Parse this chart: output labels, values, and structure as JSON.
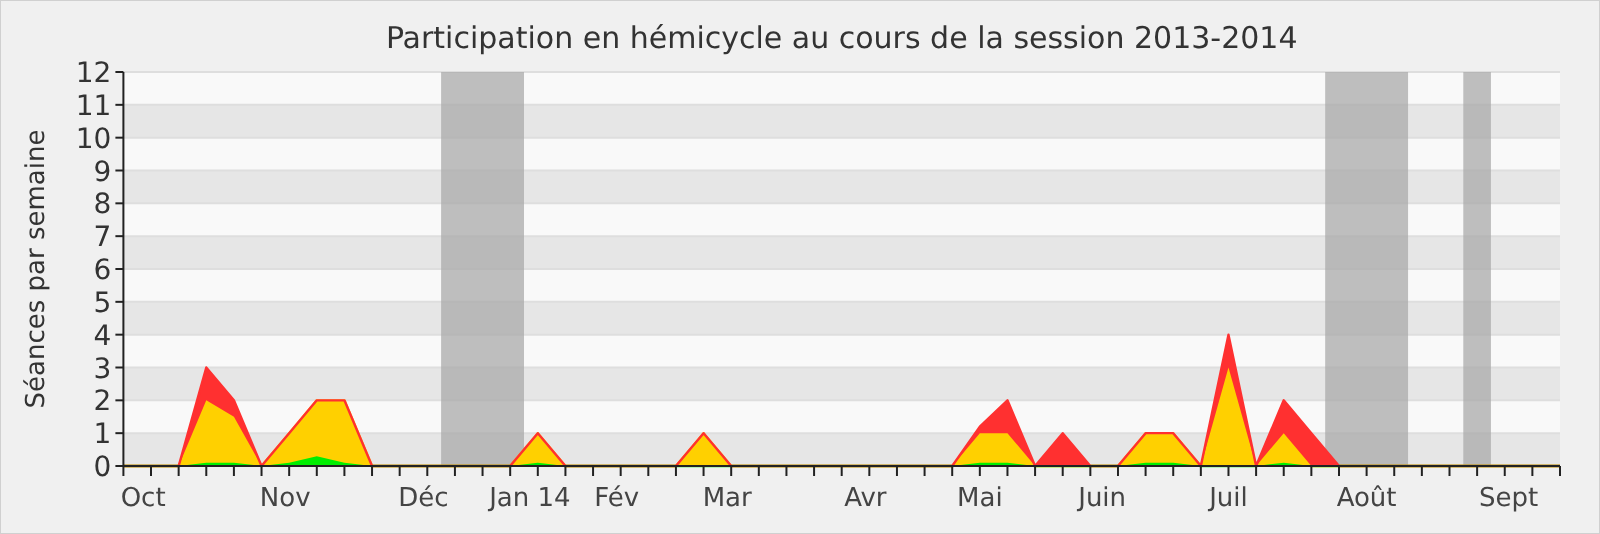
{
  "chart_data": {
    "type": "area",
    "stacked": true,
    "title": "Participation en hémicycle au cours de la session 2013-2014",
    "ylabel": "Séances par semaine",
    "x": [
      "2013-09-29",
      "2013-10-06",
      "2013-10-13",
      "2013-10-20",
      "2013-10-27",
      "2013-11-03",
      "2013-11-10",
      "2013-11-17",
      "2013-11-24",
      "2013-12-01",
      "2013-12-08",
      "2013-12-15",
      "2013-12-22",
      "2013-12-29",
      "2014-01-05",
      "2014-01-12",
      "2014-01-19",
      "2014-01-26",
      "2014-02-02",
      "2014-02-09",
      "2014-02-16",
      "2014-02-23",
      "2014-03-02",
      "2014-03-09",
      "2014-03-16",
      "2014-03-23",
      "2014-03-30",
      "2014-04-06",
      "2014-04-13",
      "2014-04-20",
      "2014-04-27",
      "2014-05-04",
      "2014-05-11",
      "2014-05-18",
      "2014-05-25",
      "2014-06-01",
      "2014-06-08",
      "2014-06-15",
      "2014-06-22",
      "2014-06-29",
      "2014-07-06",
      "2014-07-13",
      "2014-07-20",
      "2014-07-27",
      "2014-08-03",
      "2014-08-10",
      "2014-08-17",
      "2014-08-24",
      "2014-08-31",
      "2014-09-07",
      "2014-09-14",
      "2014-09-21",
      "2014-09-28"
    ],
    "xlim": [
      "2013-09-29",
      "2014-09-28"
    ],
    "xticks": [
      {
        "value": "2013-10-04",
        "label": "Oct"
      },
      {
        "value": "2013-11-09",
        "label": "Nov"
      },
      {
        "value": "2013-12-14",
        "label": "Déc"
      },
      {
        "value": "2014-01-10",
        "label": "Jan 14"
      },
      {
        "value": "2014-02-01",
        "label": "Fév"
      },
      {
        "value": "2014-03-01",
        "label": "Mar"
      },
      {
        "value": "2014-04-05",
        "label": "Avr"
      },
      {
        "value": "2014-05-04",
        "label": "Mai"
      },
      {
        "value": "2014-06-04",
        "label": "Juin"
      },
      {
        "value": "2014-07-06",
        "label": "Juil"
      },
      {
        "value": "2014-08-10",
        "label": "Août"
      },
      {
        "value": "2014-09-15",
        "label": "Sept"
      }
    ],
    "ylim": [
      0,
      12
    ],
    "yticks": [
      0,
      1,
      2,
      3,
      4,
      5,
      6,
      7,
      8,
      9,
      10,
      11,
      12
    ],
    "grid": "y",
    "series": [
      {
        "color": "#00ee00",
        "values": [
          0,
          0,
          0,
          0.1,
          0.1,
          0,
          0.1,
          0.3,
          0.1,
          0,
          0,
          0,
          0,
          0,
          0,
          0.1,
          0,
          0,
          0,
          0,
          0,
          0,
          0,
          0,
          0,
          0,
          0,
          0,
          0,
          0,
          0,
          0.1,
          0.1,
          0,
          0,
          0,
          0,
          0.1,
          0.1,
          0,
          0,
          0,
          0.1,
          0,
          0,
          0,
          0,
          0,
          0,
          0,
          0,
          0,
          0
        ]
      },
      {
        "color": "#ffd000",
        "values": [
          0,
          0,
          0,
          1.9,
          1.4,
          0,
          0.9,
          1.7,
          1.9,
          0,
          0,
          0,
          0,
          0,
          0,
          0.9,
          0,
          0,
          0,
          0,
          0,
          1,
          0,
          0,
          0,
          0,
          0,
          0,
          0,
          0,
          0,
          0.9,
          0.9,
          0,
          0,
          0,
          0,
          0.9,
          0.9,
          0,
          3,
          0,
          0.9,
          0,
          0,
          0,
          0,
          0,
          0,
          0,
          0,
          0,
          0
        ]
      },
      {
        "color": "#ff3030",
        "values": [
          0,
          0,
          0,
          1,
          0.5,
          0,
          0,
          0,
          0,
          0,
          0,
          0,
          0,
          0,
          0,
          0,
          0,
          0,
          0,
          0,
          0,
          0,
          0,
          0,
          0,
          0,
          0,
          0,
          0,
          0,
          0,
          0.2,
          1,
          0,
          1,
          0,
          0,
          0,
          0,
          0,
          1,
          0,
          1,
          1,
          0,
          0,
          0,
          0,
          0,
          0,
          0,
          0,
          0
        ]
      }
    ],
    "bands": [
      {
        "axis": "x",
        "from": "2013-12-18T12:00",
        "to": "2014-01-08T12:00",
        "color": "#aaaaaa"
      },
      {
        "axis": "x",
        "from": "2014-07-30T12:00",
        "to": "2014-08-20T12:00",
        "color": "#aaaaaa"
      },
      {
        "axis": "x",
        "from": "2014-09-03T12:00",
        "to": "2014-09-10T12:00",
        "color": "#aaaaaa"
      }
    ]
  }
}
